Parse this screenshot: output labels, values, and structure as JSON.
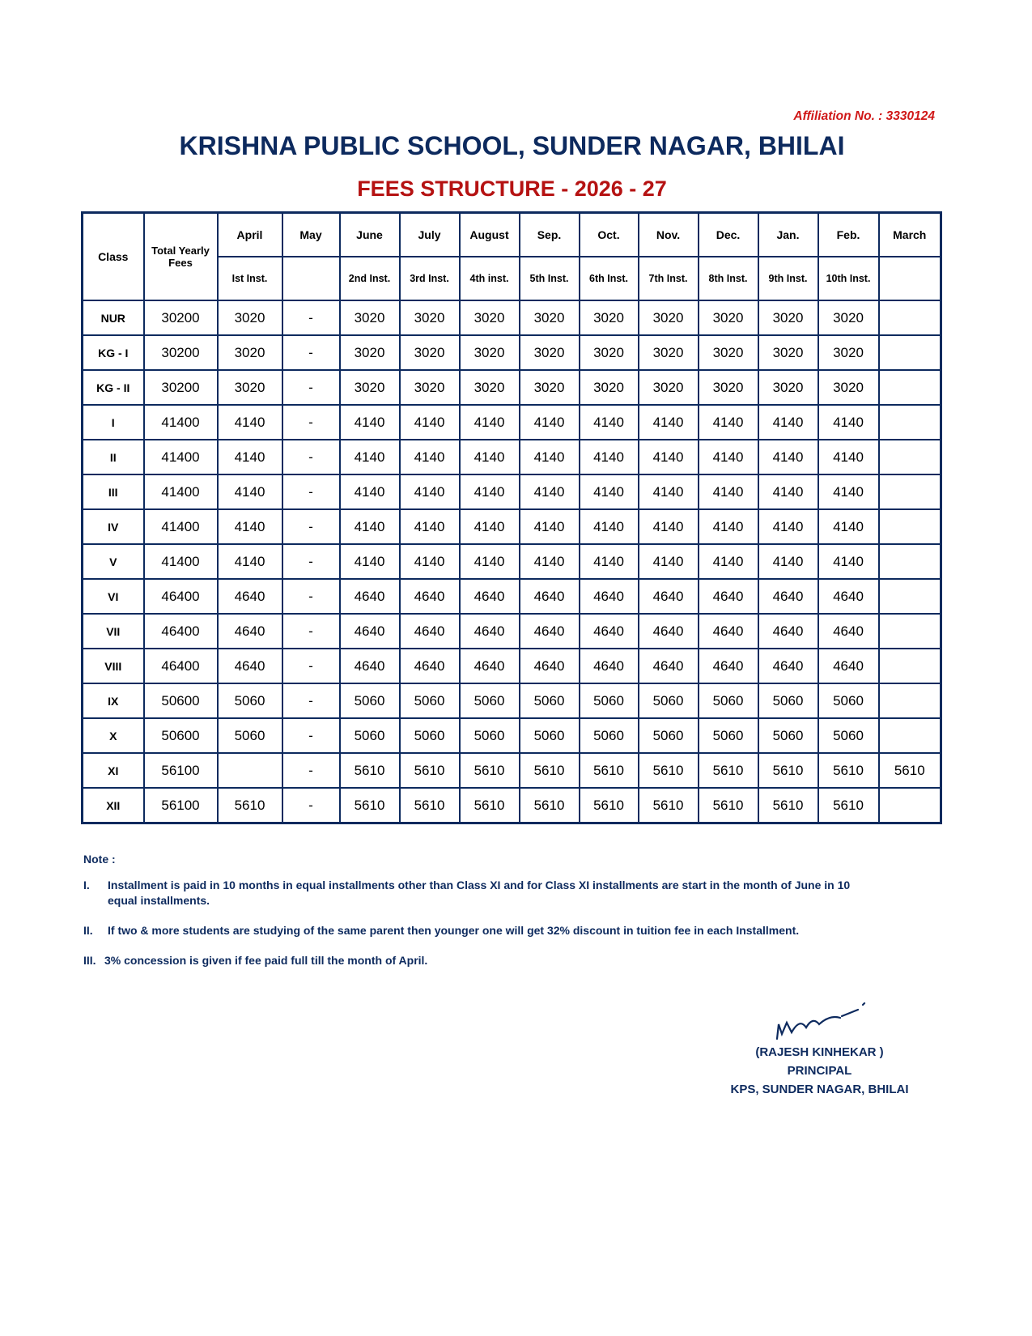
{
  "header": {
    "affiliation": "Affiliation No. : 3330124",
    "school_name": "KRISHNA PUBLIC SCHOOL, SUNDER NAGAR, BHILAI",
    "subtitle": "FEES STRUCTURE - 2026 - 27"
  },
  "table": {
    "class_header": "Class",
    "total_header": "Total Yearly Fees",
    "months": [
      "April",
      "May",
      "June",
      "July",
      "August",
      "Sep.",
      "Oct.",
      "Nov.",
      "Dec.",
      "Jan.",
      "Feb.",
      "March"
    ],
    "installments": [
      "Ist Inst.",
      "",
      "2nd Inst.",
      "3rd Inst.",
      "4th inst.",
      "5th Inst.",
      "6th Inst.",
      "7th Inst.",
      "8th Inst.",
      "9th Inst.",
      "10th Inst.",
      ""
    ],
    "rows": [
      {
        "class": "NUR",
        "total": "30200",
        "values": [
          "3020",
          "-",
          "3020",
          "3020",
          "3020",
          "3020",
          "3020",
          "3020",
          "3020",
          "3020",
          "3020",
          ""
        ]
      },
      {
        "class": "KG - I",
        "total": "30200",
        "values": [
          "3020",
          "-",
          "3020",
          "3020",
          "3020",
          "3020",
          "3020",
          "3020",
          "3020",
          "3020",
          "3020",
          ""
        ]
      },
      {
        "class": "KG - II",
        "total": "30200",
        "values": [
          "3020",
          "-",
          "3020",
          "3020",
          "3020",
          "3020",
          "3020",
          "3020",
          "3020",
          "3020",
          "3020",
          ""
        ]
      },
      {
        "class": "I",
        "total": "41400",
        "values": [
          "4140",
          "-",
          "4140",
          "4140",
          "4140",
          "4140",
          "4140",
          "4140",
          "4140",
          "4140",
          "4140",
          ""
        ]
      },
      {
        "class": "II",
        "total": "41400",
        "values": [
          "4140",
          "-",
          "4140",
          "4140",
          "4140",
          "4140",
          "4140",
          "4140",
          "4140",
          "4140",
          "4140",
          ""
        ]
      },
      {
        "class": "III",
        "total": "41400",
        "values": [
          "4140",
          "-",
          "4140",
          "4140",
          "4140",
          "4140",
          "4140",
          "4140",
          "4140",
          "4140",
          "4140",
          ""
        ]
      },
      {
        "class": "IV",
        "total": "41400",
        "values": [
          "4140",
          "-",
          "4140",
          "4140",
          "4140",
          "4140",
          "4140",
          "4140",
          "4140",
          "4140",
          "4140",
          ""
        ]
      },
      {
        "class": "V",
        "total": "41400",
        "values": [
          "4140",
          "-",
          "4140",
          "4140",
          "4140",
          "4140",
          "4140",
          "4140",
          "4140",
          "4140",
          "4140",
          ""
        ]
      },
      {
        "class": "VI",
        "total": "46400",
        "values": [
          "4640",
          "-",
          "4640",
          "4640",
          "4640",
          "4640",
          "4640",
          "4640",
          "4640",
          "4640",
          "4640",
          ""
        ]
      },
      {
        "class": "VII",
        "total": "46400",
        "values": [
          "4640",
          "-",
          "4640",
          "4640",
          "4640",
          "4640",
          "4640",
          "4640",
          "4640",
          "4640",
          "4640",
          ""
        ]
      },
      {
        "class": "VIII",
        "total": "46400",
        "values": [
          "4640",
          "-",
          "4640",
          "4640",
          "4640",
          "4640",
          "4640",
          "4640",
          "4640",
          "4640",
          "4640",
          ""
        ]
      },
      {
        "class": "IX",
        "total": "50600",
        "values": [
          "5060",
          "-",
          "5060",
          "5060",
          "5060",
          "5060",
          "5060",
          "5060",
          "5060",
          "5060",
          "5060",
          ""
        ]
      },
      {
        "class": "X",
        "total": "50600",
        "values": [
          "5060",
          "-",
          "5060",
          "5060",
          "5060",
          "5060",
          "5060",
          "5060",
          "5060",
          "5060",
          "5060",
          ""
        ]
      },
      {
        "class": "XI",
        "total": "56100",
        "values": [
          "",
          "-",
          "5610",
          "5610",
          "5610",
          "5610",
          "5610",
          "5610",
          "5610",
          "5610",
          "5610",
          "5610"
        ]
      },
      {
        "class": "XII",
        "total": "56100",
        "values": [
          "5610",
          "-",
          "5610",
          "5610",
          "5610",
          "5610",
          "5610",
          "5610",
          "5610",
          "5610",
          "5610",
          ""
        ]
      }
    ]
  },
  "notes": {
    "heading": "Note :",
    "items": [
      {
        "num": "I.",
        "text": "Installment is paid in 10 months in equal installments other than Class XI and for Class XI installments are start in the month of June in 10 equal installments."
      },
      {
        "num": "II.",
        "text": "If two & more students are studying of the same parent then younger one will get 32% discount in tuition fee in each Installment."
      },
      {
        "num": "III.",
        "text": "3% concession is given if fee paid full till the month of April."
      }
    ]
  },
  "signature": {
    "name": "(RAJESH KINHEKAR )",
    "designation": "PRINCIPAL",
    "office": "KPS, SUNDER NAGAR, BHILAI"
  },
  "colors": {
    "navy": "#0d2a5e",
    "red": "#b51212"
  }
}
